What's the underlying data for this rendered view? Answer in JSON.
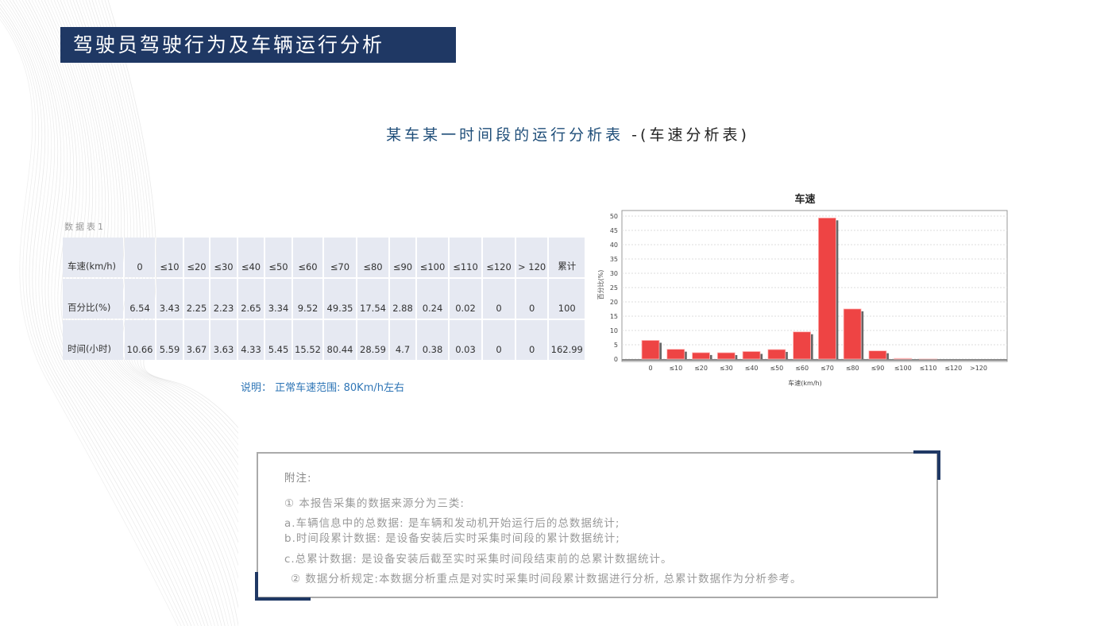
{
  "header": {
    "title": "驾驶员驾驶行为及车辆运行分析"
  },
  "subtitle": {
    "main": "某车某一时间段的运行分析表",
    "suffix": " -(车速分析表)"
  },
  "table": {
    "caption": "数据表1",
    "rows": [
      [
        "车速(km/h)",
        "0",
        "≤10",
        "≤20",
        "≤30",
        "≤40",
        "≤50",
        "≤60",
        "≤70",
        "≤80",
        "≤90",
        "≤100",
        "≤110",
        "≤120",
        "> 120",
        "累计"
      ],
      [
        "百分比(%)",
        "6.54",
        "3.43",
        "2.25",
        "2.23",
        "2.65",
        "3.34",
        "9.52",
        "49.35",
        "17.54",
        "2.88",
        "0.24",
        "0.02",
        "0",
        "0",
        "100"
      ],
      [
        "时间(小时)",
        "10.66",
        "5.59",
        "3.67",
        "3.63",
        "4.33",
        "5.45",
        "15.52",
        "80.44",
        "28.59",
        "4.7",
        "0.38",
        "0.03",
        "0",
        "0",
        "162.99"
      ]
    ]
  },
  "note": "说明： 正常车速范围: 80Km/h左右",
  "chart_data": {
    "type": "bar",
    "title": "车速",
    "xlabel": "车速(km/h)",
    "ylabel": "百分比(%)",
    "categories": [
      "0",
      "≤10",
      "≤20",
      "≤30",
      "≤40",
      "≤50",
      "≤60",
      "≤70",
      "≤80",
      "≤90",
      "≤100",
      "≤110",
      "≤120",
      ">120"
    ],
    "values": [
      6.54,
      3.43,
      2.25,
      2.23,
      2.65,
      3.34,
      9.52,
      49.35,
      17.54,
      2.88,
      0.24,
      0.02,
      0,
      0
    ],
    "ylim": [
      0,
      50
    ],
    "yticks": [
      0,
      5,
      10,
      15,
      20,
      25,
      30,
      35,
      40,
      45,
      50
    ],
    "grid": true,
    "bar_color": "#ee4444"
  },
  "appendix": {
    "heading": "附注:",
    "lines": [
      "① 本报告采集的数据来源分为三类:",
      "a.车辆信息中的总数据: 是车辆和发动机开始运行后的总数据统计;",
      "b.时间段累计数据: 是设备安装后实时采集时间段的累计数据统计;",
      "c.总累计数据: 是设备安装后截至实时采集时间段结束前的总累计数据统计。",
      "② 数据分析规定:本数据分析重点是对实时采集时间段累计数据进行分析, 总累计数据作为分析参考。"
    ]
  },
  "colors": {
    "accent": "#1f3864",
    "subtitle": "#1f4e79",
    "note": "#2e75b6"
  }
}
